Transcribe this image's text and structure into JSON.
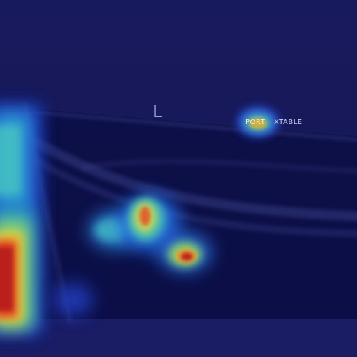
{
  "image": {
    "kind": "x-ray with saliency heatmap overlay",
    "colormap": "jet",
    "colors": {
      "background": "#151657",
      "hot": "#c8201e",
      "warm": "#f2e03c",
      "cool": "#2a9fd8",
      "cold": "#1a1f9a"
    }
  },
  "markers": {
    "side_marker": "L",
    "label_left": "PORT",
    "label_right": "XTABLE"
  }
}
